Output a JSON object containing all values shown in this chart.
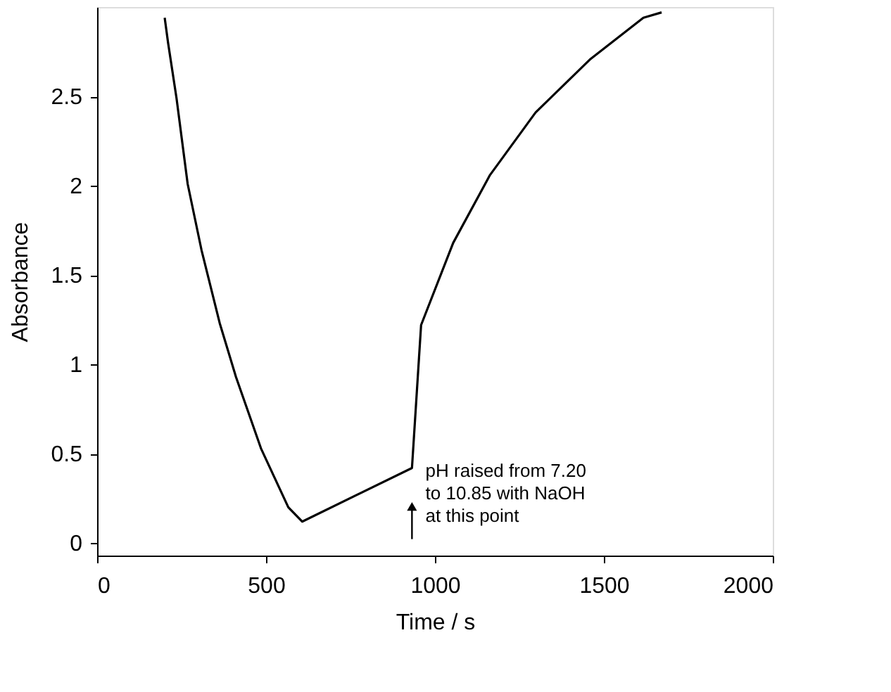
{
  "chart_data": {
    "type": "line",
    "xlabel": "Time / s",
    "ylabel": "Absorbance",
    "x": [
      200,
      210,
      235,
      268,
      309,
      363,
      411,
      485,
      566,
      607,
      932,
      959,
      1054,
      1163,
      1298,
      1461,
      1617,
      1671
    ],
    "series": [
      {
        "color": "#000000",
        "values": [
          2.94,
          2.8,
          2.49,
          2.01,
          1.64,
          1.23,
          0.93,
          0.53,
          0.2,
          0.12,
          0.42,
          1.22,
          1.68,
          2.06,
          2.41,
          2.71,
          2.94,
          2.97
        ]
      }
    ],
    "xlim": [
      0,
      2000
    ],
    "xticks": [
      0,
      500,
      1000,
      1500,
      2000
    ],
    "ylim": [
      -0.07,
      3.0
    ],
    "yticks": [
      0,
      0.5,
      1,
      1.5,
      2,
      2.5
    ],
    "grid": false,
    "marker": "none",
    "line_style": "solid",
    "annotations": [
      {
        "text": "pH raised from 7.20\nto 10.85 with NaOH\nat this point",
        "x": 932,
        "y": 0.42
      }
    ]
  }
}
